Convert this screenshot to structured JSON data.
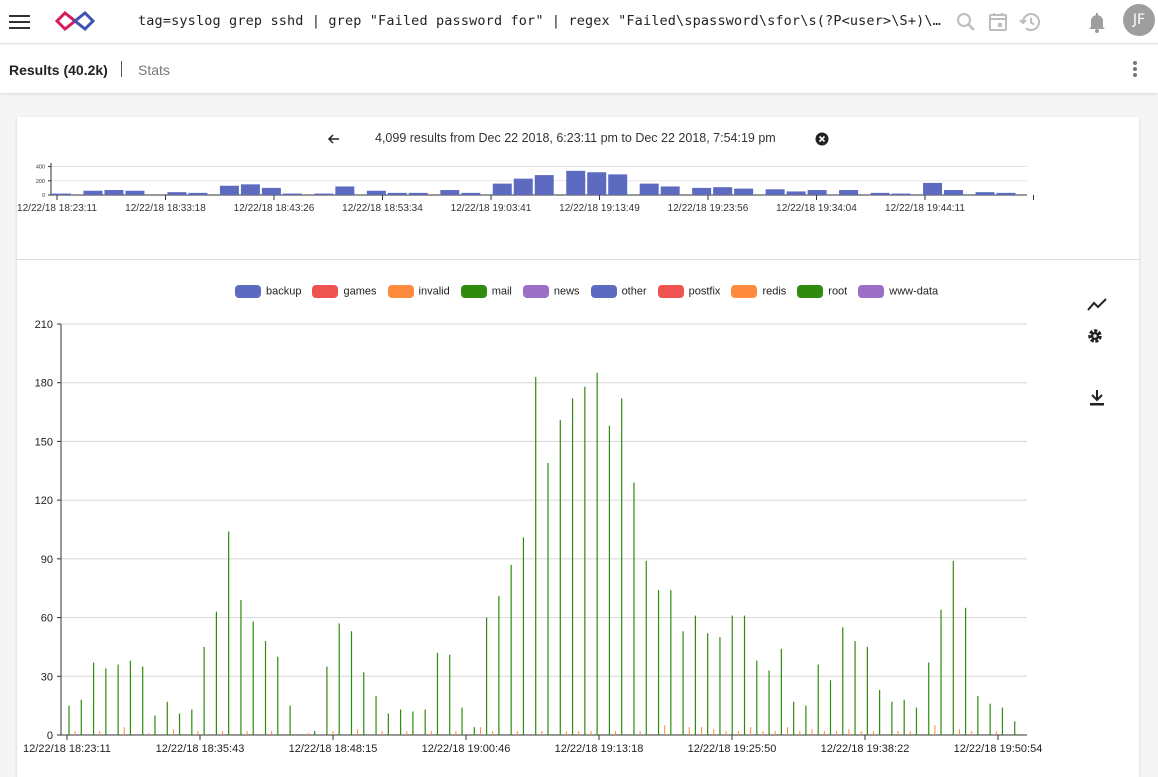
{
  "header": {
    "query": "tag=syslog grep sshd | grep \"Failed password for\" | regex \"Failed\\spassword\\sfor\\s(?P<user>\\S+)\\sfrom\\s(?P<ip>\\S+)\" | count by user | chart count by user",
    "avatar_initials": "JF",
    "icons": [
      "menu-icon",
      "logo-icon",
      "search-icon",
      "calendar-icon",
      "history-icon",
      "bell-icon"
    ]
  },
  "tabs": {
    "results_label": "Results (40.2k)",
    "stats_label": "Stats"
  },
  "timeline": {
    "summary": "4,099 results from Dec 22 2018, 6:23:11 pm to Dec 22 2018, 7:54:19 pm",
    "y_ticks": [
      "400",
      "200",
      "0"
    ],
    "x_labels": [
      "12/22/18 18:23:11",
      "12/22/18 18:33:18",
      "12/22/18 18:43:26",
      "12/22/18 18:53:34",
      "12/22/18 19:03:41",
      "12/22/18 19:13:49",
      "12/22/18 19:23:56",
      "12/22/18 19:34:04",
      "12/22/18 19:44:11"
    ],
    "bar_color": "#5c6bc0"
  },
  "chart_data": [
    {
      "type": "bar",
      "ylim": [
        0,
        450
      ],
      "values": [
        20,
        0,
        0,
        60,
        0,
        70,
        0,
        60,
        0,
        0,
        0,
        40,
        0,
        30,
        0,
        0,
        130,
        0,
        150,
        0,
        100,
        0,
        20,
        0,
        0,
        20,
        0,
        120,
        0,
        0,
        60,
        0,
        30,
        0,
        30,
        0,
        0,
        70,
        0,
        30,
        0,
        0,
        160,
        0,
        230,
        0,
        280,
        0,
        0,
        340,
        0,
        320,
        0,
        290,
        0,
        0,
        160,
        0,
        120,
        0,
        0,
        100,
        0,
        110,
        0,
        90,
        0,
        0,
        80,
        0,
        50,
        0,
        70,
        0,
        0,
        70,
        0,
        0,
        30,
        0,
        20,
        0,
        0,
        170,
        0,
        70,
        0,
        0,
        40,
        0,
        30,
        0,
        0
      ]
    },
    {
      "type": "bar",
      "legend": [
        "backup",
        "games",
        "invalid",
        "mail",
        "news",
        "other",
        "postfix",
        "redis",
        "root",
        "www-data"
      ],
      "colors": [
        "#5c6bc0",
        "#ef5350",
        "#ff8a3d",
        "#2e8b0e",
        "#9c6fc7",
        "#5c6bc0",
        "#ef5350",
        "#ff8a3d",
        "#2e8b0e",
        "#9c6fc7"
      ],
      "ylim": [
        0,
        210
      ],
      "y_ticks": [
        0,
        30,
        60,
        90,
        120,
        150,
        180,
        210
      ],
      "x_labels": [
        "12/22/18 18:23:11",
        "12/22/18 18:35:43",
        "12/22/18 18:48:15",
        "12/22/18 19:00:46",
        "12/22/18 19:13:18",
        "12/22/18 19:25:50",
        "12/22/18 19:38:22",
        "12/22/18 19:50:54"
      ],
      "series": [
        {
          "name": "root",
          "values": [
            15,
            18,
            37,
            34,
            36,
            38,
            35,
            10,
            17,
            11,
            13,
            45,
            63,
            104,
            69,
            58,
            48,
            40,
            15,
            0,
            2,
            35,
            57,
            53,
            32,
            20,
            11,
            13,
            12,
            13,
            42,
            41,
            14,
            4,
            60,
            71,
            87,
            101,
            183,
            139,
            161,
            172,
            178,
            185,
            158,
            172,
            129,
            89,
            74,
            74,
            53,
            61,
            52,
            50,
            61,
            61,
            38,
            33,
            44,
            17,
            15,
            36,
            28,
            55,
            48,
            45,
            23,
            17,
            18,
            14,
            37,
            64,
            89,
            65,
            20,
            16,
            14,
            7
          ]
        },
        {
          "name": "invalid",
          "values": [
            2,
            0,
            2,
            0,
            4,
            0,
            1,
            0,
            3,
            0,
            2,
            0,
            2,
            0,
            2,
            0,
            2,
            0,
            0,
            1,
            0,
            2,
            0,
            3,
            0,
            2,
            0,
            2,
            0,
            2,
            0,
            2,
            0,
            4,
            2,
            0,
            2,
            0,
            2,
            0,
            2,
            2,
            2,
            0,
            2,
            0,
            2,
            0,
            5,
            0,
            4,
            4,
            3,
            2,
            2,
            4,
            2,
            2,
            4,
            2,
            3,
            2,
            2,
            3,
            2,
            2,
            0,
            2,
            2,
            0,
            5,
            0,
            3,
            2,
            0,
            2,
            0,
            0
          ]
        }
      ]
    }
  ]
}
